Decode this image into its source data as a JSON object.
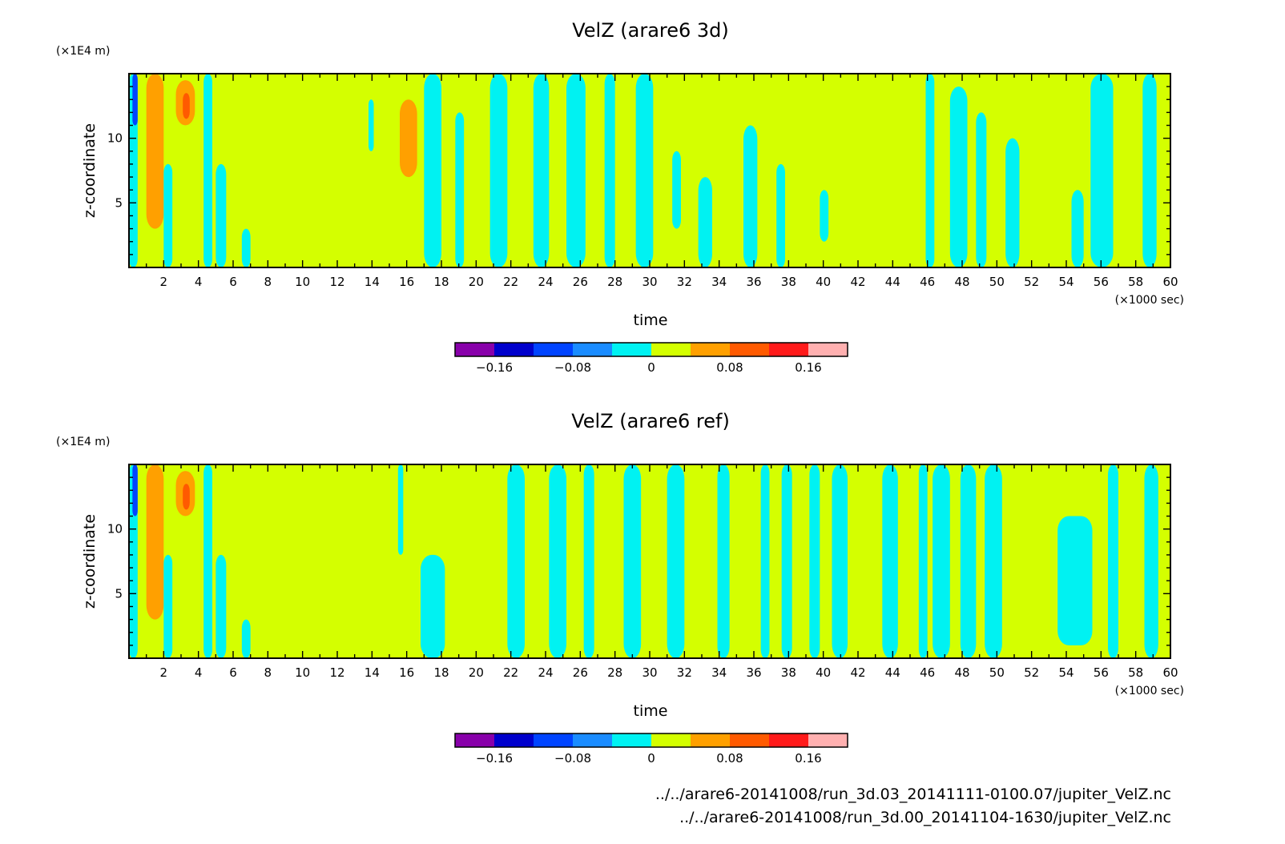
{
  "chart_data": [
    {
      "type": "heatmap",
      "title": "VelZ (arare6 3d)",
      "xlabel": "time",
      "ylabel": "z-coordinate",
      "x_unit": "(×1000 sec)",
      "y_unit": "(×1E4 m)",
      "xlim": [
        0,
        60
      ],
      "ylim": [
        0,
        15
      ],
      "x_ticks": [
        "2",
        "4",
        "6",
        "8",
        "10",
        "12",
        "14",
        "16",
        "18",
        "20",
        "22",
        "24",
        "26",
        "28",
        "30",
        "32",
        "34",
        "36",
        "38",
        "40",
        "42",
        "44",
        "46",
        "48",
        "50",
        "52",
        "54",
        "56",
        "58",
        "60"
      ],
      "y_ticks": [
        "5",
        "10"
      ],
      "colorbar": {
        "levels": [
          -0.2,
          -0.16,
          -0.12,
          -0.08,
          -0.04,
          0,
          0.04,
          0.08,
          0.12,
          0.16,
          0.2
        ],
        "colors": [
          "#8800aa",
          "#0000cc",
          "#0044ff",
          "#1a8cff",
          "#00f2f2",
          "#d4ff00",
          "#ffa000",
          "#ff5a00",
          "#ff1a1a",
          "#ffb0b0"
        ],
        "tick_labels": [
          "−0.16",
          "−0.08",
          "0",
          "0.08",
          "0.16"
        ],
        "tick_values": [
          -0.16,
          -0.08,
          0,
          0.08,
          0.16
        ]
      },
      "background_value": 0.02,
      "features": [
        {
          "x0": 0.0,
          "x1": 0.5,
          "y0": 0,
          "y1": 15,
          "v": -0.02
        },
        {
          "x0": 0.2,
          "x1": 0.5,
          "y0": 11,
          "y1": 15,
          "v": -0.1
        },
        {
          "x0": 1.0,
          "x1": 2.0,
          "y0": 3,
          "y1": 15,
          "v": 0.06
        },
        {
          "x0": 1.2,
          "x1": 1.8,
          "y0": 10,
          "y1": 14,
          "v": 0.06
        },
        {
          "x0": 2.0,
          "x1": 2.5,
          "y0": 0,
          "y1": 8,
          "v": -0.02
        },
        {
          "x0": 2.7,
          "x1": 3.8,
          "y0": 11,
          "y1": 14.5,
          "v": 0.06
        },
        {
          "x0": 3.1,
          "x1": 3.5,
          "y0": 11.5,
          "y1": 13.5,
          "v": 0.1
        },
        {
          "x0": 4.3,
          "x1": 4.8,
          "y0": 0,
          "y1": 15,
          "v": -0.02
        },
        {
          "x0": 5.0,
          "x1": 5.6,
          "y0": 0,
          "y1": 8,
          "v": -0.02
        },
        {
          "x0": 6.5,
          "x1": 7.0,
          "y0": 0,
          "y1": 3,
          "v": -0.02
        },
        {
          "x0": 13.8,
          "x1": 14.1,
          "y0": 9,
          "y1": 13,
          "v": -0.02
        },
        {
          "x0": 15.6,
          "x1": 16.6,
          "y0": 7,
          "y1": 13,
          "v": 0.06
        },
        {
          "x0": 17.0,
          "x1": 18.0,
          "y0": 0,
          "y1": 15,
          "v": -0.02
        },
        {
          "x0": 18.8,
          "x1": 19.3,
          "y0": 0,
          "y1": 12,
          "v": -0.02
        },
        {
          "x0": 20.8,
          "x1": 21.8,
          "y0": 0,
          "y1": 15,
          "v": -0.02
        },
        {
          "x0": 23.3,
          "x1": 24.2,
          "y0": 0,
          "y1": 15,
          "v": -0.02
        },
        {
          "x0": 25.2,
          "x1": 26.3,
          "y0": 0,
          "y1": 15,
          "v": -0.02
        },
        {
          "x0": 27.4,
          "x1": 28.0,
          "y0": 0,
          "y1": 15,
          "v": -0.02
        },
        {
          "x0": 29.2,
          "x1": 30.2,
          "y0": 0,
          "y1": 15,
          "v": -0.02
        },
        {
          "x0": 31.3,
          "x1": 31.8,
          "y0": 3,
          "y1": 9,
          "v": -0.02
        },
        {
          "x0": 32.8,
          "x1": 33.6,
          "y0": 0,
          "y1": 7,
          "v": -0.02
        },
        {
          "x0": 35.4,
          "x1": 36.2,
          "y0": 0,
          "y1": 11,
          "v": -0.02
        },
        {
          "x0": 37.3,
          "x1": 37.8,
          "y0": 0,
          "y1": 8,
          "v": -0.02
        },
        {
          "x0": 39.8,
          "x1": 40.3,
          "y0": 2,
          "y1": 6,
          "v": -0.02
        },
        {
          "x0": 45.9,
          "x1": 46.4,
          "y0": 0,
          "y1": 15,
          "v": -0.02
        },
        {
          "x0": 47.3,
          "x1": 48.3,
          "y0": 0,
          "y1": 14,
          "v": -0.02
        },
        {
          "x0": 48.8,
          "x1": 49.4,
          "y0": 0,
          "y1": 12,
          "v": -0.02
        },
        {
          "x0": 50.5,
          "x1": 51.3,
          "y0": 0,
          "y1": 10,
          "v": -0.02
        },
        {
          "x0": 54.3,
          "x1": 55.0,
          "y0": 0,
          "y1": 6,
          "v": -0.02
        },
        {
          "x0": 55.4,
          "x1": 56.7,
          "y0": 0,
          "y1": 15,
          "v": -0.02
        },
        {
          "x0": 58.4,
          "x1": 59.2,
          "y0": 0,
          "y1": 15,
          "v": -0.02
        }
      ]
    },
    {
      "type": "heatmap",
      "title": "VelZ (arare6 ref)",
      "xlabel": "time",
      "ylabel": "z-coordinate",
      "x_unit": "(×1000 sec)",
      "y_unit": "(×1E4 m)",
      "xlim": [
        0,
        60
      ],
      "ylim": [
        0,
        15
      ],
      "x_ticks": [
        "2",
        "4",
        "6",
        "8",
        "10",
        "12",
        "14",
        "16",
        "18",
        "20",
        "22",
        "24",
        "26",
        "28",
        "30",
        "32",
        "34",
        "36",
        "38",
        "40",
        "42",
        "44",
        "46",
        "48",
        "50",
        "52",
        "54",
        "56",
        "58",
        "60"
      ],
      "y_ticks": [
        "5",
        "10"
      ],
      "colorbar": {
        "levels": [
          -0.2,
          -0.16,
          -0.12,
          -0.08,
          -0.04,
          0,
          0.04,
          0.08,
          0.12,
          0.16,
          0.2
        ],
        "colors": [
          "#8800aa",
          "#0000cc",
          "#0044ff",
          "#1a8cff",
          "#00f2f2",
          "#d4ff00",
          "#ffa000",
          "#ff5a00",
          "#ff1a1a",
          "#ffb0b0"
        ],
        "tick_labels": [
          "−0.16",
          "−0.08",
          "0",
          "0.08",
          "0.16"
        ],
        "tick_values": [
          -0.16,
          -0.08,
          0,
          0.08,
          0.16
        ]
      },
      "background_value": 0.02,
      "features": [
        {
          "x0": 0.0,
          "x1": 0.5,
          "y0": 0,
          "y1": 15,
          "v": -0.02
        },
        {
          "x0": 0.2,
          "x1": 0.5,
          "y0": 11,
          "y1": 15,
          "v": -0.1
        },
        {
          "x0": 1.0,
          "x1": 2.0,
          "y0": 3,
          "y1": 15,
          "v": 0.06
        },
        {
          "x0": 1.2,
          "x1": 1.8,
          "y0": 10,
          "y1": 14,
          "v": 0.06
        },
        {
          "x0": 2.0,
          "x1": 2.5,
          "y0": 0,
          "y1": 8,
          "v": -0.02
        },
        {
          "x0": 2.7,
          "x1": 3.8,
          "y0": 11,
          "y1": 14.5,
          "v": 0.06
        },
        {
          "x0": 3.1,
          "x1": 3.5,
          "y0": 11.5,
          "y1": 13.5,
          "v": 0.1
        },
        {
          "x0": 4.3,
          "x1": 4.8,
          "y0": 0,
          "y1": 15,
          "v": -0.02
        },
        {
          "x0": 5.0,
          "x1": 5.6,
          "y0": 0,
          "y1": 8,
          "v": -0.02
        },
        {
          "x0": 6.5,
          "x1": 7.0,
          "y0": 0,
          "y1": 3,
          "v": -0.02
        },
        {
          "x0": 15.5,
          "x1": 15.8,
          "y0": 8,
          "y1": 15,
          "v": -0.02
        },
        {
          "x0": 16.8,
          "x1": 18.2,
          "y0": 0,
          "y1": 8,
          "v": -0.02
        },
        {
          "x0": 21.8,
          "x1": 22.8,
          "y0": 0,
          "y1": 15,
          "v": -0.02
        },
        {
          "x0": 24.2,
          "x1": 25.2,
          "y0": 0,
          "y1": 15,
          "v": -0.02
        },
        {
          "x0": 26.2,
          "x1": 26.8,
          "y0": 0,
          "y1": 15,
          "v": -0.02
        },
        {
          "x0": 28.5,
          "x1": 29.5,
          "y0": 0,
          "y1": 15,
          "v": -0.02
        },
        {
          "x0": 31.0,
          "x1": 32.0,
          "y0": 0,
          "y1": 15,
          "v": -0.02
        },
        {
          "x0": 33.9,
          "x1": 34.6,
          "y0": 0,
          "y1": 15,
          "v": -0.02
        },
        {
          "x0": 36.4,
          "x1": 36.9,
          "y0": 0,
          "y1": 15,
          "v": -0.02
        },
        {
          "x0": 37.6,
          "x1": 38.2,
          "y0": 0,
          "y1": 15,
          "v": -0.02
        },
        {
          "x0": 39.2,
          "x1": 39.8,
          "y0": 0,
          "y1": 15,
          "v": -0.02
        },
        {
          "x0": 40.5,
          "x1": 41.4,
          "y0": 0,
          "y1": 15,
          "v": -0.02
        },
        {
          "x0": 43.4,
          "x1": 44.3,
          "y0": 0,
          "y1": 15,
          "v": -0.02
        },
        {
          "x0": 45.5,
          "x1": 46.0,
          "y0": 0,
          "y1": 15,
          "v": -0.02
        },
        {
          "x0": 46.3,
          "x1": 47.3,
          "y0": 0,
          "y1": 15,
          "v": -0.02
        },
        {
          "x0": 47.9,
          "x1": 48.8,
          "y0": 0,
          "y1": 15,
          "v": -0.02
        },
        {
          "x0": 49.3,
          "x1": 50.3,
          "y0": 0,
          "y1": 15,
          "v": -0.02
        },
        {
          "x0": 53.5,
          "x1": 55.5,
          "y0": 1,
          "y1": 11,
          "v": -0.02
        },
        {
          "x0": 56.4,
          "x1": 57.0,
          "y0": 0,
          "y1": 15,
          "v": -0.02
        },
        {
          "x0": 58.5,
          "x1": 59.3,
          "y0": 0,
          "y1": 15,
          "v": -0.02
        }
      ]
    }
  ],
  "footer": {
    "files": [
      "../../arare6-20141008/run_3d.03_20141111-0100.07/jupiter_VelZ.nc",
      "../../arare6-20141008/run_3d.00_20141104-1630/jupiter_VelZ.nc"
    ]
  }
}
